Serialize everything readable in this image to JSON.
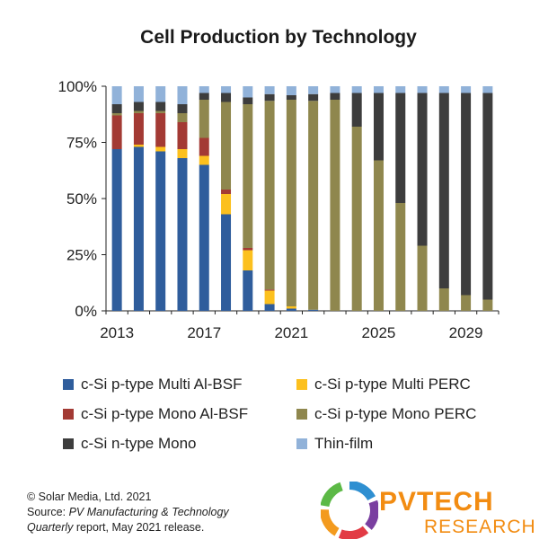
{
  "chart_data": {
    "type": "bar",
    "stacked": true,
    "title": "Cell Production by Technology",
    "x": [
      2013,
      2014,
      2015,
      2016,
      2017,
      2018,
      2019,
      2020,
      2021,
      2022,
      2023,
      2024,
      2025,
      2026,
      2027,
      2028,
      2029,
      2030
    ],
    "x_tick_labels": [
      "2013",
      "2017",
      "2021",
      "2025",
      "2029"
    ],
    "y_tick_labels": [
      "0%",
      "25%",
      "50%",
      "75%",
      "100%"
    ],
    "ylim": [
      0,
      100
    ],
    "grid": false,
    "legend_placement": "bottom",
    "series": [
      {
        "name": "c-Si p-type Multi Al-BSF",
        "color": "#2f5d9c",
        "values": [
          72,
          73,
          71,
          68,
          65,
          43,
          18,
          3,
          1,
          0.5,
          0,
          0,
          0,
          0,
          0,
          0,
          0,
          0
        ]
      },
      {
        "name": "c-Si p-type Multi PERC",
        "color": "#fcc01e",
        "values": [
          0,
          1,
          2,
          4,
          4,
          9,
          9,
          6,
          1,
          0,
          0,
          0,
          0,
          0,
          0,
          0,
          0,
          0
        ]
      },
      {
        "name": "c-Si p-type Mono Al-BSF",
        "color": "#a33a34",
        "values": [
          15,
          14,
          15,
          12,
          8,
          2,
          1,
          0.5,
          0,
          0,
          0,
          0,
          0,
          0,
          0,
          0,
          0,
          0
        ]
      },
      {
        "name": "c-Si p-type Mono PERC",
        "color": "#8f874e",
        "values": [
          1,
          1,
          1,
          4,
          17,
          39,
          64,
          84,
          92,
          93,
          94,
          82,
          67,
          48,
          29,
          10,
          7,
          5
        ]
      },
      {
        "name": "c-Si n-type Mono",
        "color": "#3d3d3d",
        "values": [
          4,
          4,
          4,
          4,
          3,
          4,
          3,
          3,
          2,
          3,
          3,
          15,
          30,
          49,
          68,
          87,
          90,
          92
        ]
      },
      {
        "name": "Thin-film",
        "color": "#91b2d9",
        "values": [
          8,
          7,
          7,
          8,
          3,
          3,
          5,
          3.5,
          4,
          3.5,
          3,
          3,
          3,
          3,
          3,
          3,
          3,
          3
        ]
      }
    ]
  },
  "footer": {
    "copyright": "© Solar Media, Ltd. 2021",
    "source_prefix": "Source: ",
    "source_title_1": "PV Manufacturing & Technology",
    "source_title_2": "Quarterly",
    "source_suffix": " report, May 2021 release."
  },
  "logo": {
    "text_pv": "PVTECH",
    "text_research": "RESEARCH"
  }
}
